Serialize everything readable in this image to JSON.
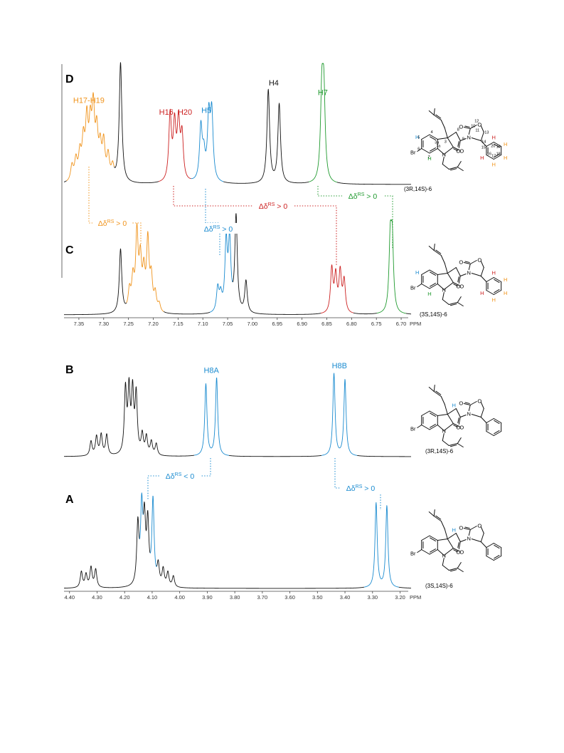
{
  "chart_data": [
    {
      "panel": "D",
      "type": "line",
      "compound": "(3R,14S)-6",
      "peaks": [
        {
          "ppm": 7.364,
          "h": 0.13,
          "c": "orange"
        },
        {
          "ppm": 7.356,
          "h": 0.17,
          "c": "orange"
        },
        {
          "ppm": 7.348,
          "h": 0.21,
          "c": "orange"
        },
        {
          "ppm": 7.341,
          "h": 0.31,
          "c": "orange"
        },
        {
          "ppm": 7.334,
          "h": 0.47,
          "c": "orange"
        },
        {
          "ppm": 7.327,
          "h": 0.4,
          "c": "orange"
        },
        {
          "ppm": 7.321,
          "h": 0.55,
          "c": "orange"
        },
        {
          "ppm": 7.314,
          "h": 0.37,
          "c": "orange"
        },
        {
          "ppm": 7.307,
          "h": 0.25,
          "c": "orange"
        },
        {
          "ppm": 7.3,
          "h": 0.3,
          "c": "orange"
        },
        {
          "ppm": 7.291,
          "h": 0.2,
          "c": "orange"
        },
        {
          "ppm": 7.282,
          "h": 0.11,
          "c": "orange"
        },
        {
          "ppm": 7.266,
          "h": 1.0,
          "c": "black"
        },
        {
          "ppm": 7.166,
          "h": 0.55,
          "c": "red"
        },
        {
          "ppm": 7.157,
          "h": 0.45,
          "c": "red"
        },
        {
          "ppm": 7.149,
          "h": 0.47,
          "c": "red"
        },
        {
          "ppm": 7.142,
          "h": 0.37,
          "c": "red"
        },
        {
          "ppm": 7.104,
          "h": 0.45,
          "c": "blue"
        },
        {
          "ppm": 7.098,
          "h": 0.2,
          "c": "blue"
        },
        {
          "ppm": 7.088,
          "h": 0.52,
          "c": "blue"
        },
        {
          "ppm": 7.082,
          "h": 0.55,
          "c": "blue"
        },
        {
          "ppm": 6.968,
          "h": 0.78,
          "c": "black"
        },
        {
          "ppm": 6.946,
          "h": 0.66,
          "c": "black"
        },
        {
          "ppm": 6.86,
          "h": 0.7,
          "c": "green"
        },
        {
          "ppm": 6.856,
          "h": 0.7,
          "c": "green"
        }
      ],
      "labels": [
        {
          "text": "H17-H19",
          "ppm": 7.33,
          "c": "orange"
        },
        {
          "text": "H16, H20",
          "ppm": 7.155,
          "c": "red"
        },
        {
          "text": "H5",
          "ppm": 7.093,
          "c": "blue"
        },
        {
          "text": "H4",
          "ppm": 6.957,
          "c": "black"
        },
        {
          "text": "H7",
          "ppm": 6.858,
          "c": "green"
        }
      ]
    },
    {
      "panel": "C",
      "type": "line",
      "compound": "(3S,14S)-6",
      "xlim": [
        7.38,
        6.68
      ],
      "x_ticks": [
        7.35,
        7.3,
        7.25,
        7.2,
        7.15,
        7.1,
        7.05,
        7.0,
        6.95,
        6.9,
        6.85,
        6.8,
        6.75,
        6.7
      ],
      "x_unit": "PPM",
      "peaks": [
        {
          "ppm": 7.266,
          "h": 0.8,
          "c": "black"
        },
        {
          "ppm": 7.248,
          "h": 0.25,
          "c": "orange"
        },
        {
          "ppm": 7.241,
          "h": 0.38,
          "c": "orange"
        },
        {
          "ppm": 7.233,
          "h": 0.95,
          "c": "orange"
        },
        {
          "ppm": 7.226,
          "h": 0.6,
          "c": "orange"
        },
        {
          "ppm": 7.219,
          "h": 0.45,
          "c": "orange"
        },
        {
          "ppm": 7.211,
          "h": 0.87,
          "c": "orange"
        },
        {
          "ppm": 7.204,
          "h": 0.4,
          "c": "orange"
        },
        {
          "ppm": 7.196,
          "h": 0.22,
          "c": "orange"
        },
        {
          "ppm": 7.188,
          "h": 0.1,
          "c": "orange"
        },
        {
          "ppm": 7.07,
          "h": 0.3,
          "c": "blue"
        },
        {
          "ppm": 7.064,
          "h": 0.2,
          "c": "blue"
        },
        {
          "ppm": 7.053,
          "h": 0.85,
          "c": "blue"
        },
        {
          "ppm": 7.046,
          "h": 0.85,
          "c": "blue"
        },
        {
          "ppm": 7.033,
          "h": 1.2,
          "c": "black"
        },
        {
          "ppm": 7.013,
          "h": 0.4,
          "c": "black"
        },
        {
          "ppm": 6.84,
          "h": 0.55,
          "c": "red"
        },
        {
          "ppm": 6.832,
          "h": 0.45,
          "c": "red"
        },
        {
          "ppm": 6.823,
          "h": 0.5,
          "c": "red"
        },
        {
          "ppm": 6.815,
          "h": 0.4,
          "c": "red"
        },
        {
          "ppm": 6.722,
          "h": 0.85,
          "c": "green"
        },
        {
          "ppm": 6.718,
          "h": 0.85,
          "c": "green"
        }
      ]
    },
    {
      "panel": "B",
      "type": "line",
      "compound": "(3R,14S)-6",
      "peaks": [
        {
          "ppm": 4.322,
          "h": 0.16,
          "c": "black"
        },
        {
          "ppm": 4.302,
          "h": 0.21,
          "c": "black"
        },
        {
          "ppm": 4.285,
          "h": 0.23,
          "c": "black"
        },
        {
          "ppm": 4.265,
          "h": 0.23,
          "c": "black"
        },
        {
          "ppm": 4.197,
          "h": 0.71,
          "c": "black"
        },
        {
          "ppm": 4.184,
          "h": 0.69,
          "c": "black"
        },
        {
          "ppm": 4.171,
          "h": 0.67,
          "c": "black"
        },
        {
          "ppm": 4.158,
          "h": 0.65,
          "c": "black"
        },
        {
          "ppm": 4.136,
          "h": 0.22,
          "c": "black"
        },
        {
          "ppm": 4.121,
          "h": 0.2,
          "c": "black"
        },
        {
          "ppm": 4.103,
          "h": 0.15,
          "c": "black"
        },
        {
          "ppm": 4.085,
          "h": 0.13,
          "c": "black"
        },
        {
          "ppm": 3.905,
          "h": 0.8,
          "c": "blue"
        },
        {
          "ppm": 3.866,
          "h": 0.87,
          "c": "blue"
        },
        {
          "ppm": 3.44,
          "h": 0.92,
          "c": "blue"
        },
        {
          "ppm": 3.4,
          "h": 0.85,
          "c": "blue"
        }
      ],
      "labels": [
        {
          "text": "H8A",
          "ppm": 3.885,
          "c": "blue"
        },
        {
          "text": "H8B",
          "ppm": 3.42,
          "c": "blue"
        }
      ]
    },
    {
      "panel": "A",
      "type": "line",
      "compound": "(3S,14S)-6",
      "xlim": [
        4.42,
        3.16
      ],
      "x_ticks": [
        4.4,
        4.3,
        4.2,
        4.1,
        4.0,
        3.9,
        3.8,
        3.7,
        3.6,
        3.5,
        3.4,
        3.3,
        3.2
      ],
      "x_unit": "PPM",
      "peaks": [
        {
          "ppm": 4.357,
          "h": 0.16,
          "c": "black"
        },
        {
          "ppm": 4.34,
          "h": 0.13,
          "c": "black"
        },
        {
          "ppm": 4.322,
          "h": 0.2,
          "c": "black"
        },
        {
          "ppm": 4.305,
          "h": 0.18,
          "c": "black"
        },
        {
          "ppm": 4.152,
          "h": 0.6,
          "c": "black"
        },
        {
          "ppm": 4.138,
          "h": 0.74,
          "c": "blue"
        },
        {
          "ppm": 4.128,
          "h": 0.6,
          "c": "black"
        },
        {
          "ppm": 4.116,
          "h": 0.6,
          "c": "black"
        },
        {
          "ppm": 4.097,
          "h": 0.85,
          "c": "blue"
        },
        {
          "ppm": 4.078,
          "h": 0.2,
          "c": "black"
        },
        {
          "ppm": 4.06,
          "h": 0.17,
          "c": "black"
        },
        {
          "ppm": 4.043,
          "h": 0.14,
          "c": "black"
        },
        {
          "ppm": 4.023,
          "h": 0.11,
          "c": "black"
        },
        {
          "ppm": 3.287,
          "h": 0.85,
          "c": "blue"
        },
        {
          "ppm": 3.248,
          "h": 0.82,
          "c": "blue"
        }
      ]
    }
  ],
  "colors": {
    "black": "#111111",
    "orange": "#f0941d",
    "red": "#cc2020",
    "blue": "#1a8bd0",
    "green": "#1f9a2e"
  },
  "panels": {
    "D": "D",
    "C": "C",
    "B": "B",
    "A": "A"
  },
  "deltas": {
    "orange": "Δδ^RS > 0",
    "blue_top": "Δδ^RS > 0",
    "red": "Δδ^RS > 0",
    "green": "Δδ^RS > 0",
    "blue_left": "Δδ^RS < 0",
    "blue_right": "Δδ^RS > 0"
  },
  "molecules": {
    "top_D": "(3R,14S)-6",
    "top_C": "(3S,14S)-6",
    "bot_B": "(3R,14S)-6",
    "bot_A": "(3S,14S)-6"
  },
  "atoms": {
    "br": "Br",
    "n": "N",
    "o": "O",
    "h": "H"
  },
  "numbering": [
    "4",
    "5",
    "6",
    "7",
    "7a",
    "3a",
    "3",
    "8",
    "9",
    "10",
    "11",
    "12",
    "13",
    "14",
    "15",
    "16",
    "17",
    "18",
    "19",
    "20"
  ]
}
